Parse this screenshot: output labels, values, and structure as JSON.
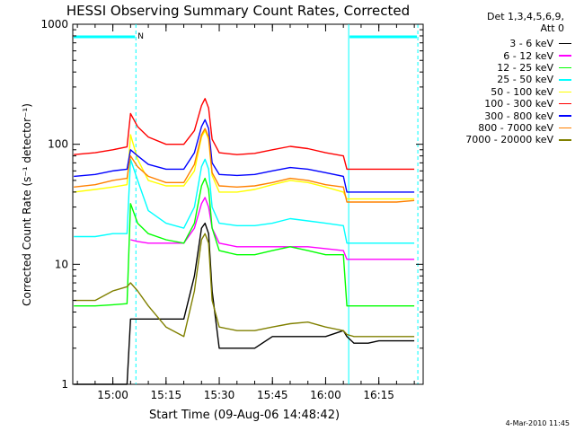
{
  "chart_data": {
    "type": "line",
    "title": "HESSI Observing Summary Count Rates, Corrected",
    "xlabel": "Start Time (09-Aug-06 14:48:42)",
    "ylabel": "Corrected Count Rate (s⁻¹ detector⁻¹)",
    "yscale": "log",
    "xlim": [
      "14:48:42",
      "16:27:30"
    ],
    "ylim": [
      1,
      1000
    ],
    "x_ticks": [
      "15:00",
      "15:15",
      "15:30",
      "15:45",
      "16:00",
      "16:15"
    ],
    "y_ticks": [
      "1",
      "10",
      "100",
      "1000"
    ],
    "legend_header": [
      "Det 1,3,4,5,6,9,",
      "Att 0"
    ],
    "legend_position": "top-right",
    "annotations": {
      "night_marker": "N",
      "night_intervals": [
        [
          "14:48:42",
          "15:06:30"
        ],
        [
          "16:06:30",
          "16:26:00"
        ]
      ],
      "timestamp": "4-Mar-2010 11:45"
    },
    "x": [
      "14:49",
      "14:55",
      "15:00",
      "15:04",
      "15:05",
      "15:07",
      "15:10",
      "15:15",
      "15:20",
      "15:23",
      "15:25",
      "15:26",
      "15:27",
      "15:28",
      "15:30",
      "15:35",
      "15:40",
      "15:45",
      "15:50",
      "15:55",
      "16:00",
      "16:05",
      "16:06",
      "16:08",
      "16:12",
      "16:15",
      "16:20",
      "16:25"
    ],
    "series": [
      {
        "name": "3 - 6 keV",
        "color": "#000000",
        "values": [
          1,
          1,
          1,
          1,
          3.5,
          3.5,
          3.5,
          3.5,
          3.5,
          8,
          20,
          22,
          18,
          6,
          2,
          2,
          2,
          2.5,
          2.5,
          2.5,
          2.5,
          2.8,
          2.5,
          2.2,
          2.2,
          2.3,
          2.3,
          2.3
        ]
      },
      {
        "name": "6 - 12 keV",
        "color": "#ff00ff",
        "values": [
          null,
          null,
          null,
          null,
          16,
          15.5,
          15,
          15,
          15,
          20,
          32,
          36,
          30,
          20,
          15,
          14,
          14,
          14,
          14,
          14,
          13.5,
          13,
          11,
          11,
          11,
          11,
          11,
          11
        ]
      },
      {
        "name": "12 - 25 keV",
        "color": "#00ff00",
        "values": [
          4.5,
          4.5,
          4.6,
          4.7,
          32,
          22,
          18,
          16,
          15,
          22,
          45,
          52,
          42,
          20,
          13,
          12,
          12,
          13,
          14,
          13,
          12,
          12,
          4.5,
          4.5,
          4.5,
          4.5,
          4.5,
          4.5
        ]
      },
      {
        "name": "25 - 50 keV",
        "color": "#00ffff",
        "values": [
          17,
          17,
          18,
          18,
          75,
          50,
          28,
          22,
          20,
          30,
          65,
          75,
          62,
          30,
          22,
          21,
          21,
          22,
          24,
          23,
          22,
          21,
          15,
          15,
          15,
          15,
          15,
          15
        ]
      },
      {
        "name": "50 - 100 keV",
        "color": "#ffff00",
        "values": [
          40,
          42,
          44,
          46,
          120,
          75,
          50,
          45,
          45,
          60,
          115,
          130,
          110,
          55,
          40,
          40,
          42,
          46,
          50,
          48,
          44,
          40,
          35,
          35,
          35,
          35,
          35,
          35
        ]
      },
      {
        "name": "100 - 300 keV",
        "color": "#ff0000",
        "values": [
          82,
          85,
          90,
          95,
          180,
          140,
          115,
          100,
          100,
          130,
          210,
          240,
          200,
          110,
          85,
          82,
          84,
          90,
          96,
          92,
          85,
          80,
          62,
          62,
          62,
          62,
          62,
          62
        ]
      },
      {
        "name": "300 - 800 keV",
        "color": "#0000ff",
        "values": [
          54,
          56,
          60,
          62,
          90,
          80,
          68,
          62,
          62,
          85,
          140,
          160,
          135,
          70,
          56,
          55,
          56,
          60,
          64,
          62,
          58,
          54,
          40,
          40,
          40,
          40,
          40,
          40
        ]
      },
      {
        "name": "800 - 7000 keV",
        "color": "#ff8000",
        "values": [
          44,
          46,
          50,
          52,
          80,
          65,
          54,
          48,
          48,
          68,
          120,
          135,
          115,
          58,
          45,
          44,
          45,
          48,
          52,
          50,
          46,
          44,
          33,
          33,
          33,
          33,
          33,
          34
        ]
      },
      {
        "name": "7000 - 20000 keV",
        "color": "#808000",
        "values": [
          5,
          5,
          6,
          6.5,
          7,
          6,
          4.5,
          3,
          2.5,
          6,
          16,
          18,
          15,
          5,
          3,
          2.8,
          2.8,
          3,
          3.2,
          3.3,
          3,
          2.8,
          2.6,
          2.5,
          2.5,
          2.5,
          2.5,
          2.5
        ]
      }
    ]
  }
}
